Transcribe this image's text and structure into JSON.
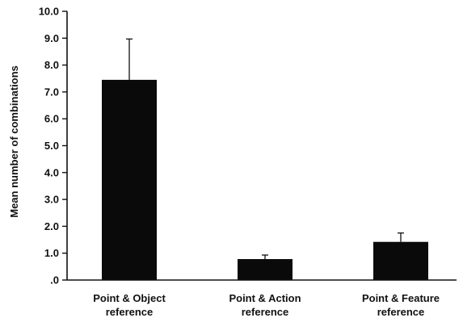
{
  "chart_data": {
    "type": "bar",
    "title": "",
    "xlabel": "",
    "ylabel": "Mean number of combinations",
    "ylim": [
      0,
      10
    ],
    "ytick_labels": [
      ".0",
      "1.0",
      "2.0",
      "3.0",
      "4.0",
      "5.0",
      "6.0",
      "7.0",
      "8.0",
      "9.0",
      "10.0"
    ],
    "categories": [
      [
        "Point & Object",
        "reference"
      ],
      [
        "Point & Action",
        "reference"
      ],
      [
        "Point & Feature",
        "reference"
      ]
    ],
    "values": [
      7.45,
      0.78,
      1.42
    ],
    "error_upper": [
      8.97,
      0.93,
      1.75
    ],
    "grid": false,
    "legend": "none",
    "bar_color": "#0a0a0a"
  }
}
